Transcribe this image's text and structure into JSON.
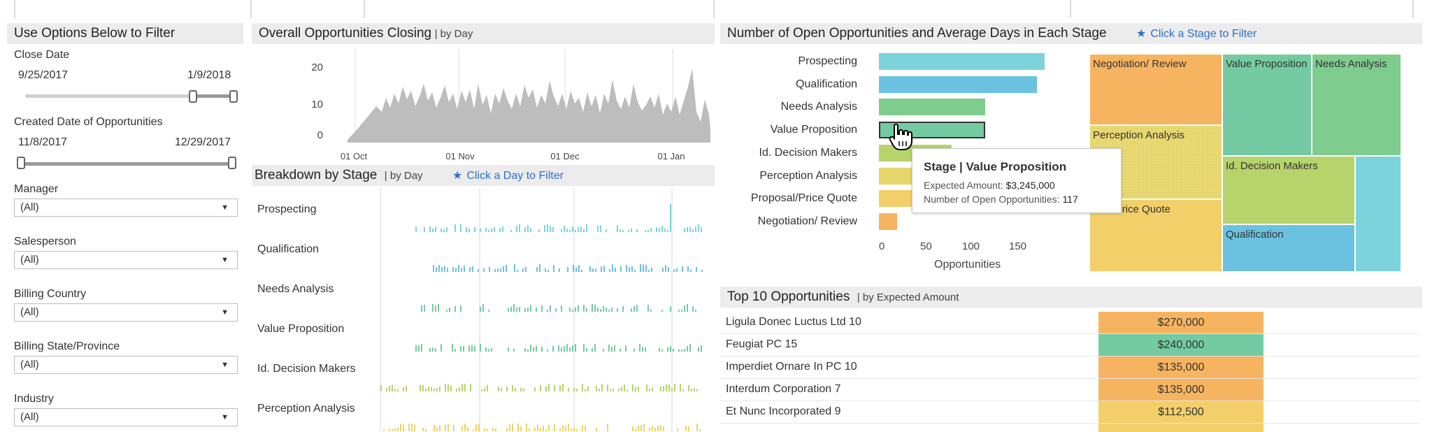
{
  "colors": {
    "prospecting": "#7dd3dc",
    "qualification": "#6ac2e0",
    "needs_analysis": "#7ecc8e",
    "value_proposition": "#74cba3",
    "id_decision_makers": "#b7d36b",
    "perception_analysis": "#e6d56a",
    "proposal_price_quote": "#f3cf6a",
    "negotiation_review": "#f7b460",
    "area_gray": "#bdbdbd",
    "link_blue": "#2f6dc7"
  },
  "filters": {
    "header": "Use Options Below to Filter",
    "close_date": {
      "label": "Close Date",
      "start": "9/25/2017",
      "end": "1/9/2018"
    },
    "created_date": {
      "label": "Created Date of Opportunities",
      "start": "11/8/2017",
      "end": "12/29/2017"
    },
    "dropdowns": [
      {
        "label": "Manager",
        "value": "(All)"
      },
      {
        "label": "Salesperson",
        "value": "(All)"
      },
      {
        "label": "Billing Country",
        "value": "(All)"
      },
      {
        "label": "Billing State/Province",
        "value": "(All)"
      },
      {
        "label": "Industry",
        "value": "(All)"
      }
    ]
  },
  "closing_chart": {
    "title": "Overall Opportunities Closing",
    "subtitle": "| by Day",
    "yticks": [
      "20",
      "10",
      "0"
    ],
    "xticks": [
      "01 Oct",
      "01 Nov",
      "01 Dec",
      "01 Jan"
    ]
  },
  "breakdown": {
    "title": "Breakdown by Stage",
    "subtitle": "| by Day",
    "link": "Click a Day to Filter",
    "stages": [
      "Prospecting",
      "Qualification",
      "Needs Analysis",
      "Value Proposition",
      "Id. Decision Makers",
      "Perception Analysis"
    ]
  },
  "stage_panel": {
    "title": "Number of Open Opportunities and Average Days in Each Stage",
    "link": "Click a Stage to Filter",
    "xlabel": "Opportunities",
    "xticks": [
      "0",
      "50",
      "100",
      "150"
    ]
  },
  "chart_data": {
    "type": "bar",
    "categories": [
      "Prospecting",
      "Qualification",
      "Needs Analysis",
      "Value Proposition",
      "Id. Decision Makers",
      "Perception Analysis",
      "Proposal/Price Quote",
      "Negotiation/ Review"
    ],
    "values": [
      182,
      174,
      117,
      117,
      80,
      60,
      50,
      20
    ],
    "xlabel": "Opportunities",
    "xlim": [
      0,
      200
    ]
  },
  "tooltip": {
    "title": "Stage | Value Proposition",
    "line1_label": "Expected Amount:",
    "line1_value": "$3,245,000",
    "line2_label": "Number of Open Opportunities:",
    "line2_value": "117"
  },
  "treemap": {
    "negotiation": "Negotiation/ Review",
    "value_prop": "Value Proposition",
    "needs": "Needs Analysis",
    "perception": "Perception Analysis",
    "decision": "Id. Decision Makers",
    "proposal": "osal/Price Quote",
    "qualification": "Qualification"
  },
  "top10": {
    "title": "Top 10 Opportunities",
    "subtitle": "| by Expected Amount",
    "rows": [
      {
        "name": "Ligula Donec Luctus Ltd 10",
        "amount": "$270,000",
        "color": "#f7b460"
      },
      {
        "name": "Feugiat PC 15",
        "amount": "$240,000",
        "color": "#74cba3"
      },
      {
        "name": "Imperdiet Ornare In PC 10",
        "amount": "$135,000",
        "color": "#f7b460"
      },
      {
        "name": "Interdum Corporation 7",
        "amount": "$135,000",
        "color": "#f7b460"
      },
      {
        "name": "Et Nunc Incorporated 9",
        "amount": "$112,500",
        "color": "#f3cf6a"
      }
    ]
  }
}
